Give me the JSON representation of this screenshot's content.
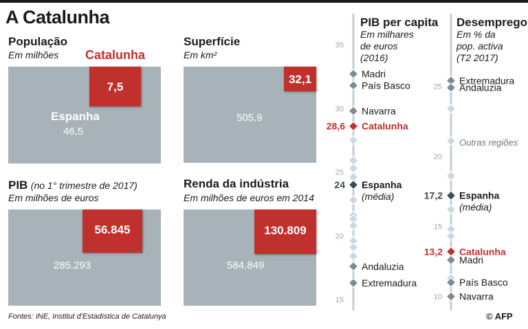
{
  "title": "A Catalunha",
  "footer": "Fontes: INE, Institut d'Estadística de Catalunya",
  "credit": "© AFP",
  "colors": {
    "catalunha": "#c0302d",
    "espanha": "#3f4a52",
    "region": "#7f8b93",
    "gray_box": "#a7b2b9",
    "axis": "#c6ced3",
    "tick": "#9aa5ac"
  },
  "panels": {
    "populacao": {
      "title": "População",
      "subtitle": "Em milhões",
      "catalunha_label": "Catalunha",
      "catalunha_value": "7,5",
      "espanha_label": "Espanha",
      "espanha_value": "46,5"
    },
    "superficie": {
      "title": "Superfície",
      "subtitle": "Em km²",
      "catalunha_value": "32,1",
      "espanha_value": "505,9"
    },
    "pib": {
      "title": "PIB",
      "title_note": "(no 1° trimestre de 2017)",
      "subtitle": "Em milhões de euros",
      "catalunha_value": "56.845",
      "espanha_value": "285.293"
    },
    "renda": {
      "title": "Renda da indústria",
      "subtitle": "Em milhões de euros em 2014",
      "catalunha_value": "130.809",
      "espanha_value": "584.849"
    }
  },
  "chart_data": [
    {
      "type": "scatter",
      "title": "PIB per capita",
      "subtitle": [
        "Em milhares",
        "de euros",
        "(2016)"
      ],
      "ylim": [
        15,
        35
      ],
      "yticks": [
        15,
        20,
        25,
        30,
        35
      ],
      "points": [
        {
          "label": "Madri",
          "y": 32.7,
          "kind": "region"
        },
        {
          "label": "País Basco",
          "y": 31.8,
          "kind": "region"
        },
        {
          "label": "Navarra",
          "y": 29.8,
          "kind": "region"
        },
        {
          "label": "Catalunha",
          "y": 28.6,
          "value_label": "28,6",
          "kind": "catalunha"
        },
        {
          "label": "",
          "y": 27.5,
          "kind": "other"
        },
        {
          "label": "",
          "y": 25.9,
          "kind": "other"
        },
        {
          "label": "",
          "y": 25.3,
          "kind": "other"
        },
        {
          "label": "",
          "y": 24.6,
          "kind": "other"
        },
        {
          "label": "Espanha",
          "sublabel": "(média)",
          "y": 24.0,
          "value_label": "24",
          "kind": "espanha"
        },
        {
          "label": "",
          "y": 22.8,
          "kind": "other"
        },
        {
          "label": "",
          "y": 21.6,
          "kind": "other"
        },
        {
          "label": "",
          "y": 21.3,
          "kind": "other"
        },
        {
          "label": "",
          "y": 20.8,
          "kind": "other"
        },
        {
          "label": "",
          "y": 19.6,
          "kind": "other"
        },
        {
          "label": "",
          "y": 19.1,
          "kind": "other"
        },
        {
          "label": "",
          "y": 18.4,
          "kind": "other"
        },
        {
          "label": "Andaluzia",
          "y": 17.6,
          "kind": "region"
        },
        {
          "label": "Extremadura",
          "y": 16.3,
          "kind": "region"
        }
      ]
    },
    {
      "type": "scatter",
      "title": "Desemprego",
      "subtitle": [
        "Em % da",
        "pop. activa",
        "(T2 2017)"
      ],
      "ylim": [
        9,
        29
      ],
      "yticks": [
        10,
        15,
        20,
        25
      ],
      "annotation": "Outras regiões",
      "points": [
        {
          "label": "Extremadura",
          "y": 25.4,
          "kind": "region"
        },
        {
          "label": "Andaluzia",
          "y": 24.9,
          "kind": "region"
        },
        {
          "label": "",
          "y": 23.4,
          "kind": "other"
        },
        {
          "label": "",
          "y": 21.1,
          "kind": "other"
        },
        {
          "label": "",
          "y": 18.6,
          "kind": "other"
        },
        {
          "label": "Espanha",
          "sublabel": "(média)",
          "y": 17.2,
          "value_label": "17,2",
          "kind": "espanha"
        },
        {
          "label": "",
          "y": 16.2,
          "kind": "other"
        },
        {
          "label": "",
          "y": 14.8,
          "kind": "other"
        },
        {
          "label": "",
          "y": 14.3,
          "kind": "other"
        },
        {
          "label": "Catalunha",
          "y": 13.2,
          "value_label": "13,2",
          "kind": "catalunha"
        },
        {
          "label": "Madri",
          "y": 12.6,
          "kind": "region"
        },
        {
          "label": "",
          "y": 11.3,
          "kind": "other"
        },
        {
          "label": "País Basco",
          "y": 11.0,
          "kind": "region"
        },
        {
          "label": "Navarra",
          "y": 10.0,
          "kind": "region"
        }
      ]
    }
  ]
}
